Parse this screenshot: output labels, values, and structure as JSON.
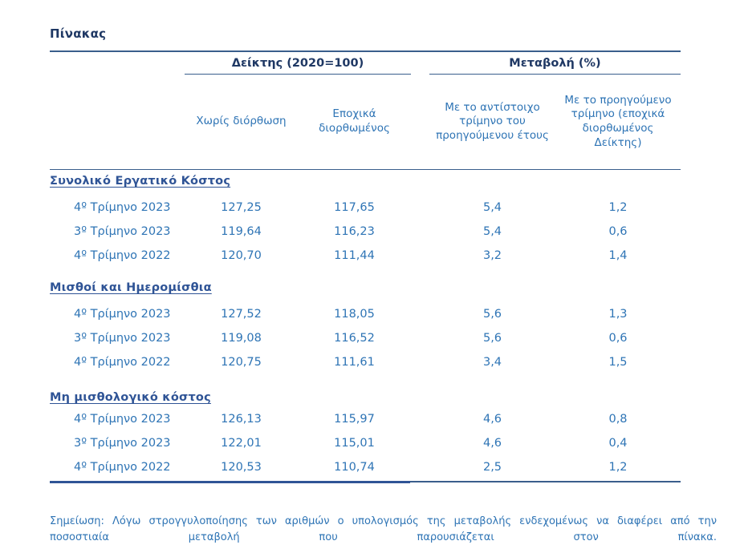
{
  "title": "Πίνακας",
  "table": {
    "groups": [
      {
        "label": "Δείκτης (2020=100)"
      },
      {
        "label": "Μεταβολή (%)"
      }
    ],
    "columns": [
      "Χωρίς διόρθωση",
      "Εποχικά διορθωμένος",
      "Με το αντίστοιχο τρίμηνο του προηγούμενου έτους",
      "Με το προηγούμενο τρίμηνο (εποχικά διορθωμένος Δείκτης)"
    ],
    "sections": [
      {
        "header": "Συνολικό Εργατικό Κόστος",
        "rows": [
          {
            "label": "4º Τρίμηνο 2023",
            "values": [
              "127,25",
              "117,65",
              "5,4",
              "1,2"
            ]
          },
          {
            "label": "3º Τρίμηνο 2023",
            "values": [
              "119,64",
              "116,23",
              "5,4",
              "0,6"
            ]
          },
          {
            "label": "4º Τρίμηνο 2022",
            "values": [
              "120,70",
              "111,44",
              "3,2",
              "1,4"
            ]
          }
        ]
      },
      {
        "header": "Μισθοί και Ημερομίσθια",
        "rows": [
          {
            "label": "4º Τρίμηνο 2023",
            "values": [
              "127,52",
              "118,05",
              "5,6",
              "1,3"
            ]
          },
          {
            "label": "3º Τρίμηνο 2023",
            "values": [
              "119,08",
              "116,52",
              "5,6",
              "0,6"
            ]
          },
          {
            "label": "4º Τρίμηνο 2022",
            "values": [
              "120,75",
              "111,61",
              "3,4",
              "1,5"
            ]
          }
        ]
      },
      {
        "header": "Μη μισθολογικό κόστος",
        "rows": [
          {
            "label": "4º Τρίμηνο 2023",
            "values": [
              "126,13",
              "115,97",
              "4,6",
              "0,8"
            ]
          },
          {
            "label": "3º Τρίμηνο 2023",
            "values": [
              "122,01",
              "115,01",
              "4,6",
              "0,4"
            ]
          },
          {
            "label": "4º Τρίμηνο 2022",
            "values": [
              "120,53",
              "110,74",
              "2,5",
              "1,2"
            ]
          }
        ]
      }
    ]
  },
  "note": "Σημείωση: Λόγω στρογγυλοποίησης των αριθμών ο υπολογισμός της μεταβολής ενδεχομένως να διαφέρει από την ποσοστιαία μεταβολή που παρουσιάζεται στον πίνακα.",
  "colors": {
    "heading_dark": "#1F3864",
    "section_header": "#2F5496",
    "body_text": "#2E74B5",
    "rule": "#3A5E8C"
  }
}
